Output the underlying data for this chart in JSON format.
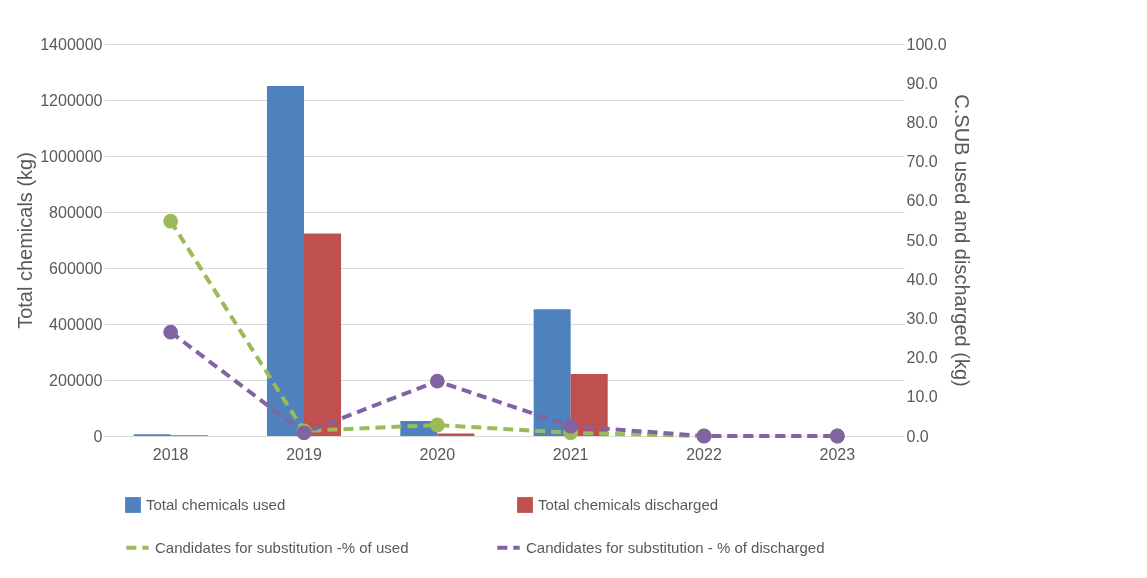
{
  "chart_data": {
    "type": "bar",
    "categories": [
      "2018",
      "2019",
      "2020",
      "2021",
      "2022",
      "2023"
    ],
    "ylabel": "Total chemicals (kg)",
    "y2label": "C.SUB used and discharged (kg)",
    "ylim": [
      0,
      1400000
    ],
    "yticks": [
      0,
      200000,
      400000,
      600000,
      800000,
      1000000,
      1200000,
      1400000
    ],
    "y2lim": [
      0,
      100
    ],
    "y2ticks": [
      {
        "value": 0,
        "label": "0.0"
      },
      {
        "value": 10,
        "label": "10.0"
      },
      {
        "value": 20,
        "label": "20.0"
      },
      {
        "value": 30,
        "label": "30.0"
      },
      {
        "value": 40,
        "label": "40.0"
      },
      {
        "value": 50,
        "label": "50.0"
      },
      {
        "value": 60,
        "label": "60.0"
      },
      {
        "value": 70,
        "label": "70.0"
      },
      {
        "value": 80,
        "label": "80.0"
      },
      {
        "value": 90,
        "label": "90.0"
      },
      {
        "value": 100,
        "label": "100.0"
      }
    ],
    "grid": "y",
    "legend": "bottom",
    "series": [
      {
        "name": "Total chemicals used",
        "color": "#4f81bd",
        "values": [
          6000,
          1250000,
          54000,
          453000,
          0,
          0
        ]
      },
      {
        "name": "Total chemicals discharged",
        "color": "#c0504d",
        "values": [
          3000,
          723000,
          9000,
          221000,
          0,
          0
        ]
      },
      {
        "name": "Candidates for substitution -% of used",
        "color": "#9bbb59",
        "type": "line",
        "axis": "y2",
        "line_style": "dashed",
        "marker": "circle",
        "values": [
          54.8,
          1.3,
          2.8,
          0.8,
          0,
          0
        ]
      },
      {
        "name": "Candidates for substitution - % of discharged",
        "color": "#8064a2",
        "type": "line",
        "axis": "y2",
        "line_style": "dashed",
        "marker": "circle",
        "values": [
          26.5,
          0.8,
          14.0,
          2.5,
          0,
          0
        ]
      }
    ]
  }
}
